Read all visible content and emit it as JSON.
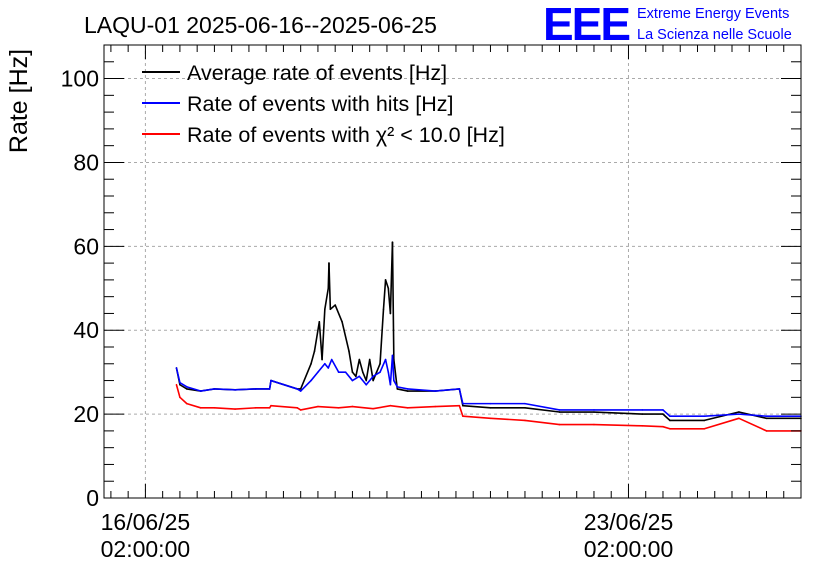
{
  "title": "LAQU-01 2025-06-16--2025-06-25",
  "logo": {
    "mark": "EEE",
    "line1": "Extreme Energy Events",
    "line2": "La Scienza nelle Scuole"
  },
  "chart_data": {
    "type": "line",
    "ylabel": "Rate [Hz]",
    "ylim": [
      0,
      108
    ],
    "yticks": [
      0,
      20,
      40,
      60,
      80,
      100
    ],
    "x_axis": {
      "unit": "days",
      "range": [
        -0.6,
        9.5
      ],
      "ticks": [
        {
          "x": 0,
          "label_date": "16/06/25",
          "label_time": "02:00:00"
        },
        {
          "x": 7,
          "label_date": "23/06/25",
          "label_time": "02:00:00"
        }
      ]
    },
    "grid": true,
    "legend_position": "top-left",
    "series": [
      {
        "name": "Average rate of events [Hz]",
        "color": "#000000",
        "points": [
          [
            0.45,
            31
          ],
          [
            0.5,
            27
          ],
          [
            0.6,
            26
          ],
          [
            0.8,
            25.5
          ],
          [
            1.0,
            26
          ],
          [
            1.3,
            25.8
          ],
          [
            1.6,
            26
          ],
          [
            1.8,
            26
          ],
          [
            1.82,
            28
          ],
          [
            2.2,
            26
          ],
          [
            2.25,
            26
          ],
          [
            2.4,
            32
          ],
          [
            2.45,
            35
          ],
          [
            2.52,
            42
          ],
          [
            2.56,
            33
          ],
          [
            2.6,
            45
          ],
          [
            2.65,
            50
          ],
          [
            2.66,
            56
          ],
          [
            2.68,
            45
          ],
          [
            2.75,
            46
          ],
          [
            2.85,
            42
          ],
          [
            2.95,
            35
          ],
          [
            3.0,
            30
          ],
          [
            3.05,
            29
          ],
          [
            3.1,
            33
          ],
          [
            3.15,
            30
          ],
          [
            3.2,
            28
          ],
          [
            3.25,
            33
          ],
          [
            3.3,
            28
          ],
          [
            3.35,
            30
          ],
          [
            3.4,
            32
          ],
          [
            3.45,
            45
          ],
          [
            3.48,
            52
          ],
          [
            3.52,
            50
          ],
          [
            3.55,
            44
          ],
          [
            3.58,
            61
          ],
          [
            3.6,
            33
          ],
          [
            3.65,
            26
          ],
          [
            3.8,
            25.5
          ],
          [
            4.2,
            25.5
          ],
          [
            4.55,
            26
          ],
          [
            4.6,
            22
          ],
          [
            5.0,
            21.5
          ],
          [
            5.5,
            21.5
          ],
          [
            6.0,
            20.5
          ],
          [
            6.5,
            20.5
          ],
          [
            7.2,
            20
          ],
          [
            7.5,
            20
          ],
          [
            7.6,
            18.5
          ],
          [
            8.1,
            18.5
          ],
          [
            8.6,
            20.5
          ],
          [
            9.0,
            19
          ],
          [
            9.5,
            19
          ]
        ]
      },
      {
        "name": "Rate of events with hits [Hz]",
        "color": "#0000ff",
        "points": [
          [
            0.45,
            31
          ],
          [
            0.5,
            27.5
          ],
          [
            0.6,
            26.5
          ],
          [
            0.8,
            25.5
          ],
          [
            1.0,
            26
          ],
          [
            1.3,
            25.8
          ],
          [
            1.6,
            26
          ],
          [
            1.8,
            26
          ],
          [
            1.82,
            28
          ],
          [
            2.2,
            26
          ],
          [
            2.25,
            25.5
          ],
          [
            2.4,
            28
          ],
          [
            2.5,
            30
          ],
          [
            2.6,
            32
          ],
          [
            2.65,
            31
          ],
          [
            2.7,
            33
          ],
          [
            2.8,
            30
          ],
          [
            2.9,
            30
          ],
          [
            3.0,
            28
          ],
          [
            3.1,
            29
          ],
          [
            3.2,
            27
          ],
          [
            3.3,
            29
          ],
          [
            3.4,
            30
          ],
          [
            3.48,
            33
          ],
          [
            3.52,
            30
          ],
          [
            3.55,
            27
          ],
          [
            3.58,
            34
          ],
          [
            3.6,
            28
          ],
          [
            3.65,
            26.5
          ],
          [
            3.8,
            26
          ],
          [
            4.2,
            25.5
          ],
          [
            4.55,
            26
          ],
          [
            4.6,
            22.5
          ],
          [
            5.0,
            22.5
          ],
          [
            5.5,
            22.5
          ],
          [
            6.0,
            21
          ],
          [
            6.5,
            21
          ],
          [
            7.2,
            21
          ],
          [
            7.5,
            21
          ],
          [
            7.6,
            19.5
          ],
          [
            8.1,
            19.5
          ],
          [
            8.6,
            20
          ],
          [
            9.0,
            19.5
          ],
          [
            9.5,
            19.5
          ]
        ]
      },
      {
        "name": "Rate of events with χ² < 10.0 [Hz]",
        "color": "#ff0000",
        "points": [
          [
            0.45,
            27
          ],
          [
            0.5,
            24
          ],
          [
            0.6,
            22.5
          ],
          [
            0.8,
            21.5
          ],
          [
            1.0,
            21.5
          ],
          [
            1.3,
            21.2
          ],
          [
            1.6,
            21.5
          ],
          [
            1.8,
            21.5
          ],
          [
            1.82,
            22
          ],
          [
            2.2,
            21.5
          ],
          [
            2.25,
            21
          ],
          [
            2.5,
            21.8
          ],
          [
            2.8,
            21.5
          ],
          [
            3.0,
            21.8
          ],
          [
            3.3,
            21.3
          ],
          [
            3.55,
            22
          ],
          [
            3.8,
            21.5
          ],
          [
            4.2,
            21.8
          ],
          [
            4.55,
            22
          ],
          [
            4.6,
            19.5
          ],
          [
            5.0,
            19
          ],
          [
            5.5,
            18.5
          ],
          [
            6.0,
            17.5
          ],
          [
            6.5,
            17.5
          ],
          [
            7.2,
            17.2
          ],
          [
            7.5,
            17
          ],
          [
            7.6,
            16.5
          ],
          [
            8.1,
            16.5
          ],
          [
            8.6,
            19
          ],
          [
            9.0,
            16
          ],
          [
            9.5,
            16
          ]
        ]
      }
    ]
  }
}
